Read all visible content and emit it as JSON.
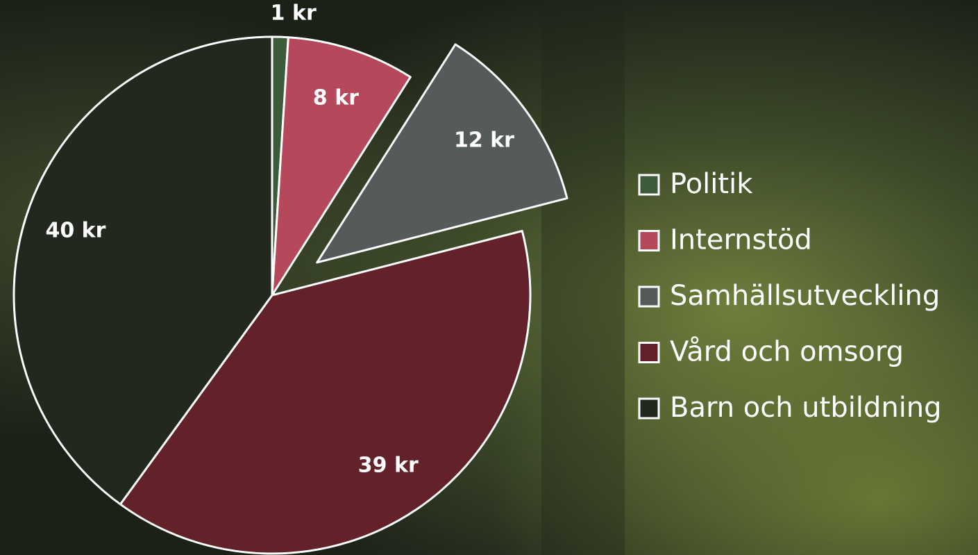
{
  "chart_data": {
    "type": "pie",
    "categories": [
      "Politik",
      "Internstöd",
      "Samhällsutveckling",
      "Vård och omsorg",
      "Barn och utbildning"
    ],
    "values": [
      1,
      8,
      12,
      39,
      40
    ],
    "value_labels": [
      "1 kr",
      "8 kr",
      "12 kr",
      "39 kr",
      "40 kr"
    ],
    "colors": [
      "#3d5a3a",
      "#b5485a",
      "#555a5a",
      "#63222a",
      "#23281e"
    ],
    "exploded": [
      false,
      false,
      true,
      false,
      false
    ],
    "legend": "right"
  }
}
